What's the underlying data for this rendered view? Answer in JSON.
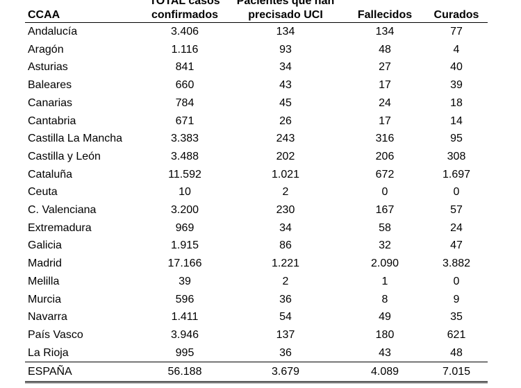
{
  "table": {
    "headers": [
      {
        "line1": "",
        "line2": "CCAA"
      },
      {
        "line1": "TOTAL casos",
        "line2": "confirmados"
      },
      {
        "line1": "Pacientes que han",
        "line2": "precisado UCI"
      },
      {
        "line1": "",
        "line2": "Fallecidos"
      },
      {
        "line1": "",
        "line2": "Curados"
      }
    ],
    "rows": [
      [
        "Andalucía",
        "3.406",
        "134",
        "134",
        "77"
      ],
      [
        "Aragón",
        "1.116",
        "93",
        "48",
        "4"
      ],
      [
        "Asturias",
        "841",
        "34",
        "27",
        "40"
      ],
      [
        "Baleares",
        "660",
        "43",
        "17",
        "39"
      ],
      [
        "Canarias",
        "784",
        "45",
        "24",
        "18"
      ],
      [
        "Cantabria",
        "671",
        "26",
        "17",
        "14"
      ],
      [
        "Castilla La Mancha",
        "3.383",
        "243",
        "316",
        "95"
      ],
      [
        "Castilla y León",
        "3.488",
        "202",
        "206",
        "308"
      ],
      [
        "Cataluña",
        "11.592",
        "1.021",
        "672",
        "1.697"
      ],
      [
        "Ceuta",
        "10",
        "2",
        "0",
        "0"
      ],
      [
        "C. Valenciana",
        "3.200",
        "230",
        "167",
        "57"
      ],
      [
        "Extremadura",
        "969",
        "34",
        "58",
        "24"
      ],
      [
        "Galicia",
        "1.915",
        "86",
        "32",
        "47"
      ],
      [
        "Madrid",
        "17.166",
        "1.221",
        "2.090",
        "3.882"
      ],
      [
        "Melilla",
        "39",
        "2",
        "1",
        "0"
      ],
      [
        "Murcia",
        "596",
        "36",
        "8",
        "9"
      ],
      [
        "Navarra",
        "1.411",
        "54",
        "49",
        "35"
      ],
      [
        "País Vasco",
        "3.946",
        "137",
        "180",
        "621"
      ],
      [
        "La Rioja",
        "995",
        "36",
        "43",
        "48"
      ]
    ],
    "total": [
      "ESPAÑA",
      "56.188",
      "3.679",
      "4.089",
      "7.015"
    ]
  }
}
